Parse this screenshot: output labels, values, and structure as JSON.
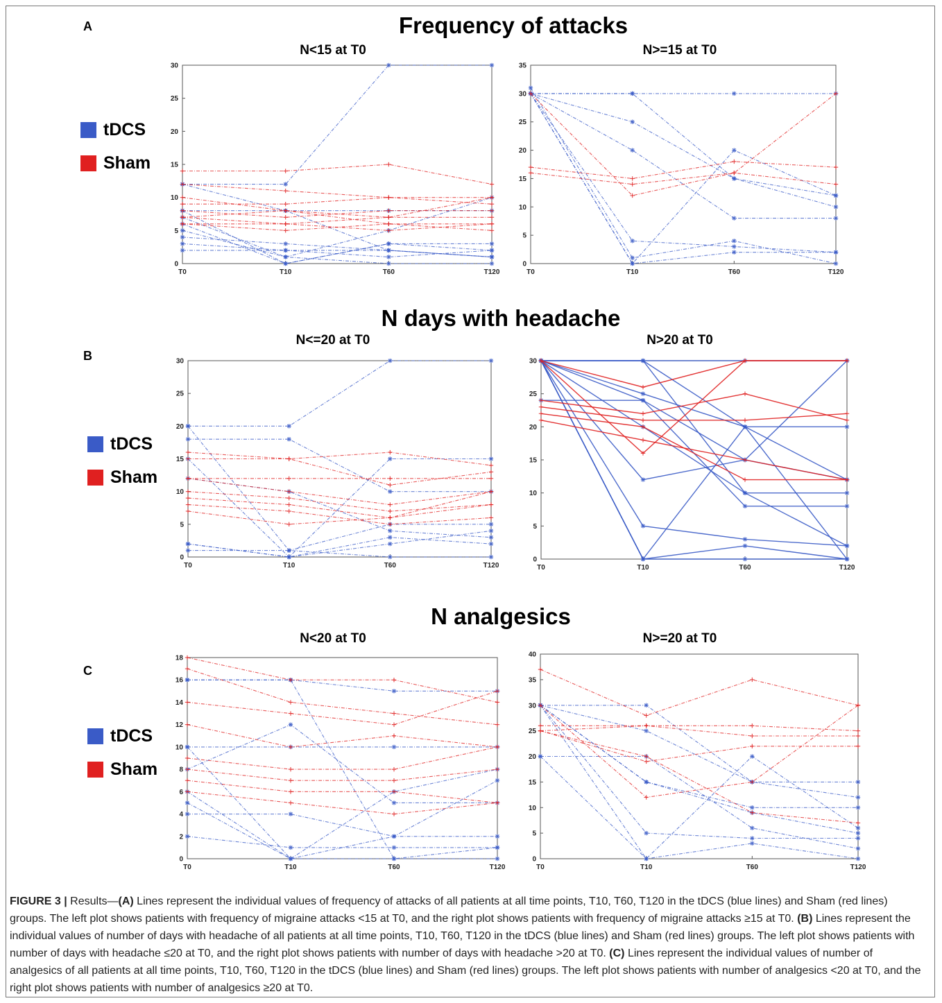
{
  "legend": {
    "tdcs_label": "tDCS",
    "sham_label": "Sham",
    "tdcs_color": "#3a5bc7",
    "sham_color": "#e02020"
  },
  "sections": [
    {
      "letter": "A",
      "title": "Frequency of attacks"
    },
    {
      "letter": "B",
      "title": "N days with headache"
    },
    {
      "letter": "C",
      "title": "N analgesics"
    }
  ],
  "chart_data": [
    {
      "id": "A-left",
      "type": "line",
      "title": "N<15 at T0",
      "categories": [
        "T0",
        "T10",
        "T60",
        "T120"
      ],
      "ylim": [
        0,
        30
      ],
      "yticks": [
        0,
        5,
        10,
        15,
        20,
        25,
        30
      ],
      "style": "dashed",
      "series": [
        {
          "group": "tDCS",
          "values": [
            12,
            12,
            30,
            30
          ]
        },
        {
          "group": "tDCS",
          "values": [
            12,
            8,
            2,
            1
          ]
        },
        {
          "group": "tDCS",
          "values": [
            8,
            0,
            3,
            2
          ]
        },
        {
          "group": "tDCS",
          "values": [
            7,
            1,
            5,
            10
          ]
        },
        {
          "group": "tDCS",
          "values": [
            6,
            0,
            3,
            3
          ]
        },
        {
          "group": "tDCS",
          "values": [
            4,
            3,
            2,
            1
          ]
        },
        {
          "group": "tDCS",
          "values": [
            3,
            2,
            1,
            2
          ]
        },
        {
          "group": "tDCS",
          "values": [
            2,
            2,
            2,
            1
          ]
        },
        {
          "group": "tDCS",
          "values": [
            8,
            8,
            8,
            8
          ]
        },
        {
          "group": "tDCS",
          "values": [
            5,
            1,
            0,
            0
          ]
        },
        {
          "group": "Sham",
          "values": [
            14,
            14,
            15,
            12
          ]
        },
        {
          "group": "Sham",
          "values": [
            12,
            11,
            10,
            10
          ]
        },
        {
          "group": "Sham",
          "values": [
            9,
            9,
            10,
            9
          ]
        },
        {
          "group": "Sham",
          "values": [
            8,
            7,
            8,
            8
          ]
        },
        {
          "group": "Sham",
          "values": [
            7,
            6,
            7,
            7
          ]
        },
        {
          "group": "Sham",
          "values": [
            7,
            8,
            6,
            6
          ]
        },
        {
          "group": "Sham",
          "values": [
            6,
            6,
            5,
            6
          ]
        },
        {
          "group": "Sham",
          "values": [
            6,
            5,
            6,
            5
          ]
        },
        {
          "group": "Sham",
          "values": [
            10,
            8,
            7,
            10
          ]
        }
      ]
    },
    {
      "id": "A-right",
      "type": "line",
      "title": "N>=15 at T0",
      "categories": [
        "T0",
        "T10",
        "T60",
        "T120"
      ],
      "ylim": [
        0,
        35
      ],
      "yticks": [
        0,
        5,
        10,
        15,
        20,
        25,
        30,
        35
      ],
      "style": "dashed",
      "series": [
        {
          "group": "tDCS",
          "values": [
            30,
            30,
            30,
            30
          ]
        },
        {
          "group": "tDCS",
          "values": [
            30,
            30,
            15,
            12
          ]
        },
        {
          "group": "tDCS",
          "values": [
            30,
            25,
            15,
            10
          ]
        },
        {
          "group": "tDCS",
          "values": [
            30,
            20,
            8,
            8
          ]
        },
        {
          "group": "tDCS",
          "values": [
            30,
            4,
            3,
            2
          ]
        },
        {
          "group": "tDCS",
          "values": [
            31,
            1,
            4,
            0
          ]
        },
        {
          "group": "tDCS",
          "values": [
            30,
            0,
            2,
            2
          ]
        },
        {
          "group": "tDCS",
          "values": [
            30,
            0,
            20,
            12
          ]
        },
        {
          "group": "Sham",
          "values": [
            30,
            12,
            16,
            30
          ]
        },
        {
          "group": "Sham",
          "values": [
            17,
            15,
            18,
            17
          ]
        },
        {
          "group": "Sham",
          "values": [
            16,
            14,
            16,
            14
          ]
        }
      ]
    },
    {
      "id": "B-left",
      "type": "line",
      "title": "N<=20 at T0",
      "categories": [
        "T0",
        "T10",
        "T60",
        "T120"
      ],
      "ylim": [
        0,
        30
      ],
      "yticks": [
        0,
        5,
        10,
        15,
        20,
        25,
        30
      ],
      "style": "dashed",
      "series": [
        {
          "group": "tDCS",
          "values": [
            20,
            20,
            30,
            30
          ]
        },
        {
          "group": "tDCS",
          "values": [
            20,
            1,
            5,
            5
          ]
        },
        {
          "group": "tDCS",
          "values": [
            18,
            18,
            10,
            10
          ]
        },
        {
          "group": "tDCS",
          "values": [
            15,
            0,
            15,
            15
          ]
        },
        {
          "group": "tDCS",
          "values": [
            12,
            10,
            4,
            3
          ]
        },
        {
          "group": "tDCS",
          "values": [
            2,
            0,
            3,
            2
          ]
        },
        {
          "group": "tDCS",
          "values": [
            1,
            1,
            0,
            0
          ]
        },
        {
          "group": "tDCS",
          "values": [
            2,
            0,
            2,
            4
          ]
        },
        {
          "group": "Sham",
          "values": [
            16,
            15,
            16,
            14
          ]
        },
        {
          "group": "Sham",
          "values": [
            15,
            15,
            11,
            13
          ]
        },
        {
          "group": "Sham",
          "values": [
            12,
            12,
            12,
            12
          ]
        },
        {
          "group": "Sham",
          "values": [
            12,
            10,
            8,
            10
          ]
        },
        {
          "group": "Sham",
          "values": [
            10,
            9,
            7,
            8
          ]
        },
        {
          "group": "Sham",
          "values": [
            9,
            8,
            6,
            8
          ]
        },
        {
          "group": "Sham",
          "values": [
            8,
            7,
            5,
            6
          ]
        },
        {
          "group": "Sham",
          "values": [
            7,
            5,
            6,
            10
          ]
        }
      ]
    },
    {
      "id": "B-right",
      "type": "line",
      "title": "N>20 at T0",
      "categories": [
        "T0",
        "T10",
        "T60",
        "T120"
      ],
      "ylim": [
        0,
        30
      ],
      "yticks": [
        0,
        5,
        10,
        15,
        20,
        25,
        30
      ],
      "style": "solid",
      "series": [
        {
          "group": "tDCS",
          "values": [
            30,
            30,
            30,
            30
          ]
        },
        {
          "group": "tDCS",
          "values": [
            30,
            30,
            20,
            20
          ]
        },
        {
          "group": "tDCS",
          "values": [
            30,
            30,
            10,
            10
          ]
        },
        {
          "group": "tDCS",
          "values": [
            30,
            25,
            20,
            12
          ]
        },
        {
          "group": "tDCS",
          "values": [
            30,
            24,
            8,
            8
          ]
        },
        {
          "group": "tDCS",
          "values": [
            30,
            20,
            10,
            2
          ]
        },
        {
          "group": "tDCS",
          "values": [
            30,
            12,
            15,
            12
          ]
        },
        {
          "group": "tDCS",
          "values": [
            30,
            5,
            3,
            2
          ]
        },
        {
          "group": "tDCS",
          "values": [
            30,
            0,
            2,
            0
          ]
        },
        {
          "group": "tDCS",
          "values": [
            30,
            0,
            0,
            0
          ]
        },
        {
          "group": "tDCS",
          "values": [
            30,
            0,
            20,
            0
          ]
        },
        {
          "group": "tDCS",
          "values": [
            24,
            24,
            15,
            30
          ]
        },
        {
          "group": "Sham",
          "values": [
            30,
            26,
            30,
            30
          ]
        },
        {
          "group": "Sham",
          "values": [
            24,
            22,
            25,
            21
          ]
        },
        {
          "group": "Sham",
          "values": [
            23,
            21,
            21,
            22
          ]
        },
        {
          "group": "Sham",
          "values": [
            22,
            20,
            12,
            12
          ]
        },
        {
          "group": "Sham",
          "values": [
            21,
            18,
            15,
            12
          ]
        },
        {
          "group": "Sham",
          "values": [
            30,
            16,
            30,
            30
          ]
        }
      ]
    },
    {
      "id": "C-left",
      "type": "line",
      "title": "N<20 at T0",
      "categories": [
        "T0",
        "T10",
        "T60",
        "T120"
      ],
      "ylim": [
        0,
        18
      ],
      "yticks": [
        0,
        2,
        4,
        6,
        8,
        10,
        12,
        14,
        16,
        18
      ],
      "style": "dashed",
      "series": [
        {
          "group": "tDCS",
          "values": [
            16,
            16,
            15,
            15
          ]
        },
        {
          "group": "tDCS",
          "values": [
            10,
            10,
            10,
            10
          ]
        },
        {
          "group": "tDCS",
          "values": [
            8,
            12,
            5,
            5
          ]
        },
        {
          "group": "tDCS",
          "values": [
            5,
            0,
            6,
            8
          ]
        },
        {
          "group": "tDCS",
          "values": [
            4,
            4,
            2,
            2
          ]
        },
        {
          "group": "tDCS",
          "values": [
            2,
            1,
            1,
            1
          ]
        },
        {
          "group": "tDCS",
          "values": [
            6,
            0,
            0,
            1
          ]
        },
        {
          "group": "tDCS",
          "values": [
            16,
            16,
            0,
            0
          ]
        },
        {
          "group": "tDCS",
          "values": [
            10,
            0,
            2,
            7
          ]
        },
        {
          "group": "Sham",
          "values": [
            18,
            16,
            16,
            14
          ]
        },
        {
          "group": "Sham",
          "values": [
            17,
            14,
            13,
            12
          ]
        },
        {
          "group": "Sham",
          "values": [
            14,
            13,
            12,
            15
          ]
        },
        {
          "group": "Sham",
          "values": [
            12,
            10,
            11,
            10
          ]
        },
        {
          "group": "Sham",
          "values": [
            9,
            8,
            8,
            10
          ]
        },
        {
          "group": "Sham",
          "values": [
            8,
            7,
            7,
            8
          ]
        },
        {
          "group": "Sham",
          "values": [
            7,
            6,
            6,
            5
          ]
        },
        {
          "group": "Sham",
          "values": [
            6,
            5,
            4,
            5
          ]
        }
      ]
    },
    {
      "id": "C-right",
      "type": "line",
      "title": "N>=20 at T0",
      "categories": [
        "T0",
        "T10",
        "T60",
        "T120"
      ],
      "ylim": [
        0,
        40
      ],
      "yticks": [
        0,
        5,
        10,
        15,
        20,
        25,
        30,
        35,
        40
      ],
      "style": "dashed",
      "series": [
        {
          "group": "tDCS",
          "values": [
            30,
            30,
            15,
            15
          ]
        },
        {
          "group": "tDCS",
          "values": [
            30,
            25,
            15,
            12
          ]
        },
        {
          "group": "tDCS",
          "values": [
            30,
            15,
            10,
            10
          ]
        },
        {
          "group": "tDCS",
          "values": [
            30,
            5,
            4,
            4
          ]
        },
        {
          "group": "tDCS",
          "values": [
            30,
            0,
            20,
            6
          ]
        },
        {
          "group": "tDCS",
          "values": [
            20,
            20,
            6,
            2
          ]
        },
        {
          "group": "tDCS",
          "values": [
            20,
            0,
            3,
            0
          ]
        },
        {
          "group": "tDCS",
          "values": [
            30,
            15,
            9,
            5
          ]
        },
        {
          "group": "Sham",
          "values": [
            37,
            28,
            35,
            30
          ]
        },
        {
          "group": "Sham",
          "values": [
            30,
            12,
            15,
            30
          ]
        },
        {
          "group": "Sham",
          "values": [
            26,
            26,
            26,
            25
          ]
        },
        {
          "group": "Sham",
          "values": [
            25,
            26,
            24,
            24
          ]
        },
        {
          "group": "Sham",
          "values": [
            25,
            20,
            9,
            7
          ]
        },
        {
          "group": "Sham",
          "values": [
            25,
            19,
            22,
            22
          ]
        }
      ]
    }
  ],
  "caption": {
    "label": "FIGURE 3 |",
    "text_1": " Results—",
    "a_label": "(A)",
    "text_a": " Lines represent the individual values of frequency of attacks of all patients at all time points, T10, T60, T120 in the tDCS (blue lines) and Sham (red lines) groups. The left plot shows patients with frequency of migraine attacks <15 at T0, and the right plot shows patients with frequency of migraine attacks ≥15 at T0. ",
    "b_label": "(B)",
    "text_b": " Lines represent the individual values of number of days with headache of all patients at all time points, T10, T60, T120 in the tDCS (blue lines) and Sham (red lines) groups. The left plot shows patients with number of days with headache ≤20 at T0, and the right plot shows patients with number of days with headache >20 at T0. ",
    "c_label": "(C)",
    "text_c": " Lines represent the individual values of number of analgesics of all patients at all time points, T10, T60, T120 in the tDCS (blue lines) and Sham (red lines) groups. The left plot shows patients with number of analgesics <20 at T0, and the right plot shows patients with number of analgesics ≥20 at T0."
  }
}
